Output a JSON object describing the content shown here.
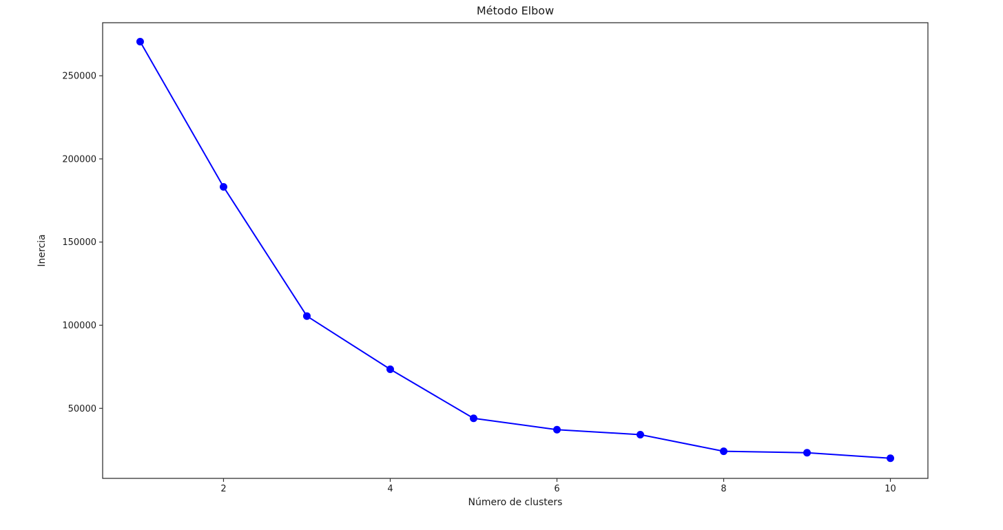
{
  "figure": {
    "background": "#ffffff"
  },
  "chart_data": {
    "type": "line",
    "title": "Método Elbow",
    "xlabel": "Número de clusters",
    "ylabel": "Inercia",
    "x": [
      1,
      2,
      3,
      4,
      5,
      6,
      7,
      8,
      9,
      10
    ],
    "y": [
      270500,
      183200,
      105500,
      73500,
      44000,
      37200,
      34200,
      24200,
      23300,
      20000
    ],
    "series": [
      {
        "name": "Inercia",
        "values": [
          270500,
          183200,
          105500,
          73500,
          44000,
          37200,
          34200,
          24200,
          23300,
          20000
        ]
      }
    ],
    "xticks": [
      2,
      4,
      6,
      8,
      10
    ],
    "yticks": [
      50000,
      100000,
      150000,
      200000,
      250000
    ],
    "xlim": [
      0.55,
      10.45
    ],
    "ylim": [
      7900,
      281900
    ],
    "grid": false,
    "legend_position": "none",
    "line_color": "#0000ff",
    "marker": "o",
    "marker_color": "#0000ff",
    "spine_color": "#333333",
    "tick_color": "#333333",
    "text_color": "#1a1a1a"
  }
}
